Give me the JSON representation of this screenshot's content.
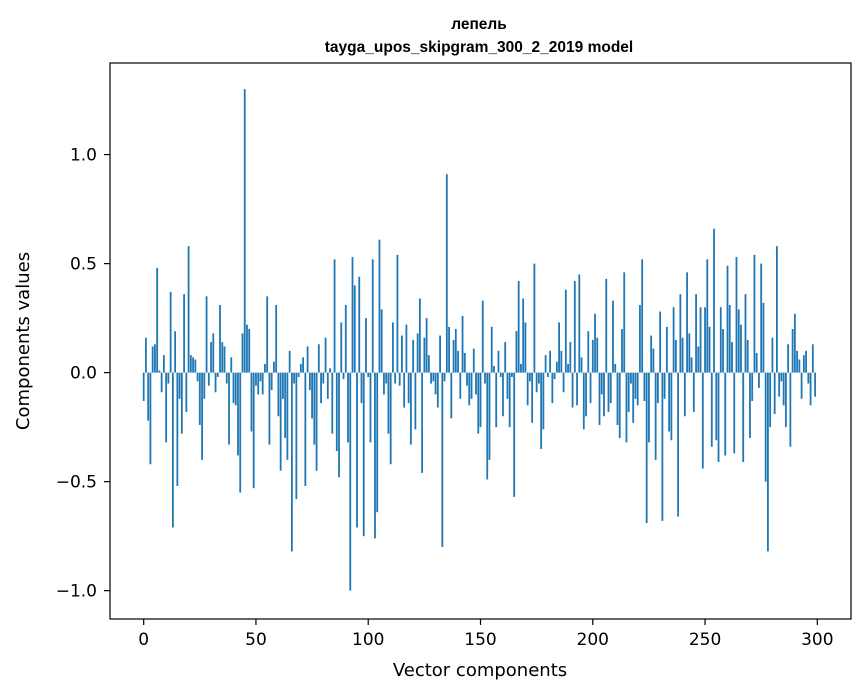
{
  "chart_data": {
    "type": "bar",
    "title": "лепель",
    "subtitle": "tayga_upos_skipgram_300_2_2019 model",
    "xlabel": "Vector components",
    "ylabel": "Components values",
    "xlim": [
      -15,
      315
    ],
    "ylim": [
      -1.13,
      1.42
    ],
    "xticks": [
      0,
      50,
      100,
      150,
      200,
      250,
      300
    ],
    "xtick_labels": [
      "0",
      "50",
      "100",
      "150",
      "200",
      "250",
      "300"
    ],
    "yticks": [
      -1.0,
      -0.5,
      0.0,
      0.5,
      1.0
    ],
    "ytick_labels": [
      "−1.0",
      "−0.5",
      "0.0",
      "0.5",
      "1.0"
    ],
    "bar_color": "#1f77b4",
    "categories_note": "component index 0..299",
    "values": [
      -0.13,
      0.16,
      -0.22,
      -0.42,
      0.12,
      0.13,
      0.48,
      0.01,
      -0.09,
      0.08,
      -0.32,
      -0.05,
      0.37,
      -0.71,
      0.19,
      -0.52,
      -0.12,
      -0.28,
      0.36,
      -0.18,
      0.58,
      0.08,
      0.07,
      0.06,
      -0.04,
      -0.24,
      -0.4,
      -0.12,
      0.35,
      -0.06,
      0.14,
      0.18,
      -0.09,
      -0.02,
      0.31,
      0.14,
      0.12,
      -0.05,
      -0.33,
      0.07,
      -0.14,
      -0.15,
      -0.38,
      -0.55,
      0.18,
      1.3,
      0.22,
      0.2,
      -0.27,
      -0.53,
      -0.06,
      -0.1,
      -0.04,
      -0.1,
      0.04,
      0.35,
      -0.33,
      -0.08,
      0.05,
      0.31,
      -0.2,
      -0.45,
      -0.12,
      -0.3,
      -0.4,
      0.1,
      -0.82,
      -0.05,
      -0.58,
      -0.02,
      0.04,
      0.07,
      -0.52,
      0.12,
      -0.08,
      -0.21,
      -0.33,
      -0.45,
      0.13,
      -0.14,
      -0.05,
      0.16,
      -0.12,
      0.02,
      -0.28,
      0.52,
      -0.36,
      -0.48,
      0.23,
      -0.03,
      0.31,
      -0.32,
      -1.0,
      0.53,
      0.4,
      -0.71,
      0.44,
      -0.14,
      -0.75,
      0.25,
      -0.02,
      -0.32,
      0.52,
      -0.76,
      -0.64,
      0.61,
      0.29,
      -0.1,
      -0.05,
      -0.28,
      -0.42,
      0.23,
      -0.05,
      0.54,
      -0.06,
      0.17,
      -0.16,
      0.22,
      -0.14,
      -0.33,
      0.15,
      -0.26,
      0.18,
      0.34,
      -0.46,
      0.16,
      0.25,
      0.08,
      -0.05,
      -0.04,
      -0.1,
      -0.16,
      0.17,
      -0.8,
      -0.04,
      0.91,
      0.21,
      -0.21,
      0.15,
      0.2,
      0.1,
      -0.12,
      0.26,
      0.09,
      -0.06,
      -0.15,
      -0.12,
      0.11,
      -0.1,
      -0.28,
      -0.25,
      0.33,
      -0.05,
      -0.49,
      -0.4,
      0.21,
      0.03,
      -0.25,
      0.1,
      -0.02,
      -0.2,
      0.14,
      -0.12,
      -0.25,
      -0.02,
      -0.57,
      0.19,
      0.42,
      0.04,
      0.34,
      0.23,
      -0.15,
      -0.04,
      -0.23,
      0.5,
      -0.09,
      -0.05,
      -0.35,
      -0.26,
      0.08,
      -0.02,
      0.1,
      -0.14,
      -0.03,
      0.05,
      0.23,
      0.1,
      -0.09,
      0.38,
      0.04,
      0.14,
      -0.16,
      0.42,
      -0.15,
      0.45,
      0.07,
      -0.26,
      -0.2,
      0.19,
      -0.14,
      0.15,
      0.27,
      0.16,
      -0.24,
      -0.1,
      -0.2,
      0.43,
      -0.18,
      -0.14,
      0.33,
      0.04,
      -0.24,
      -0.3,
      0.2,
      0.46,
      -0.32,
      -0.18,
      -0.05,
      -0.23,
      -0.12,
      -0.15,
      0.31,
      0.52,
      -0.13,
      -0.69,
      -0.32,
      0.17,
      0.11,
      -0.4,
      -0.14,
      0.28,
      -0.68,
      -0.12,
      0.21,
      -0.27,
      -0.31,
      0.3,
      0.15,
      -0.66,
      0.36,
      0.16,
      -0.2,
      0.46,
      0.18,
      0.07,
      -0.18,
      0.36,
      0.12,
      0.3,
      -0.44,
      0.3,
      0.52,
      0.21,
      -0.34,
      0.66,
      -0.31,
      -0.41,
      0.3,
      0.2,
      -0.38,
      0.49,
      0.31,
      0.14,
      -0.37,
      0.53,
      0.29,
      0.22,
      -0.41,
      0.36,
      0.15,
      -0.3,
      -0.13,
      0.54,
      0.09,
      -0.07,
      0.5,
      0.32,
      -0.5,
      -0.82,
      -0.25,
      0.16,
      -0.19,
      0.58,
      -0.11,
      -0.04,
      -0.15,
      -0.25,
      0.13,
      -0.34,
      0.2,
      0.27,
      0.1,
      0.06,
      -0.12,
      0.08,
      0.1,
      -0.05,
      -0.15,
      0.13,
      -0.11
    ]
  }
}
